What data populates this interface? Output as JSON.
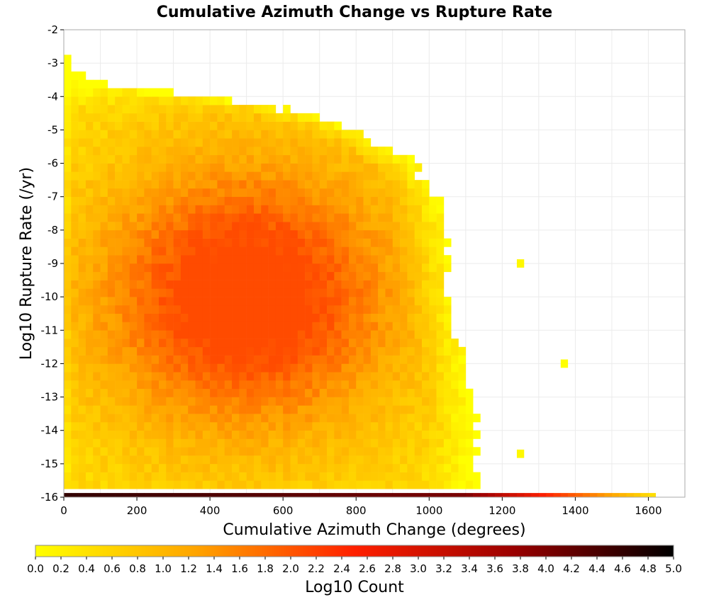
{
  "chart_data": {
    "type": "heatmap",
    "title": "Cumulative Azimuth Change vs Rupture Rate",
    "xlabel": "Cumulative Azimuth Change (degrees)",
    "ylabel": "Log10 Rupture Rate (/yr)",
    "xlim": [
      0,
      1700
    ],
    "ylim": [
      -16,
      -2
    ],
    "x_ticks": [
      "0",
      "200",
      "400",
      "600",
      "800",
      "1000",
      "1200",
      "1400",
      "1600"
    ],
    "y_ticks": [
      "-2",
      "-3",
      "-4",
      "-5",
      "-6",
      "-7",
      "-8",
      "-9",
      "-10",
      "-11",
      "-12",
      "-13",
      "-14",
      "-15",
      "-16"
    ],
    "grid": true,
    "bin_width_x": 20,
    "bin_height_y": 0.25,
    "colorbar": {
      "label": "Log10 Count",
      "range": [
        0.0,
        5.0
      ],
      "ticks": [
        "0.0",
        "0.2",
        "0.4",
        "0.6",
        "0.8",
        "1.0",
        "1.2",
        "1.4",
        "1.6",
        "1.8",
        "2.0",
        "2.2",
        "2.4",
        "2.6",
        "2.8",
        "3.0",
        "3.2",
        "3.4",
        "3.6",
        "3.8",
        "4.0",
        "4.2",
        "4.4",
        "4.6",
        "4.8",
        "5.0"
      ],
      "colors": [
        "#ffff00",
        "#ffa500",
        "#ff2000",
        "#9a0000",
        "#000000"
      ]
    },
    "density_peak": {
      "x": 500,
      "y": -10,
      "log10_count": 2.0
    },
    "bottom_row": {
      "y": -16,
      "x_range": [
        0,
        1620
      ],
      "log10_count_max": 4.6
    },
    "outliers": [
      {
        "x": 1370,
        "y": -12,
        "log10_count": 0.0
      },
      {
        "x": 1250,
        "y": -9,
        "log10_count": 0.1
      },
      {
        "x": 1240,
        "y": -14.7,
        "log10_count": 0.1
      }
    ]
  }
}
